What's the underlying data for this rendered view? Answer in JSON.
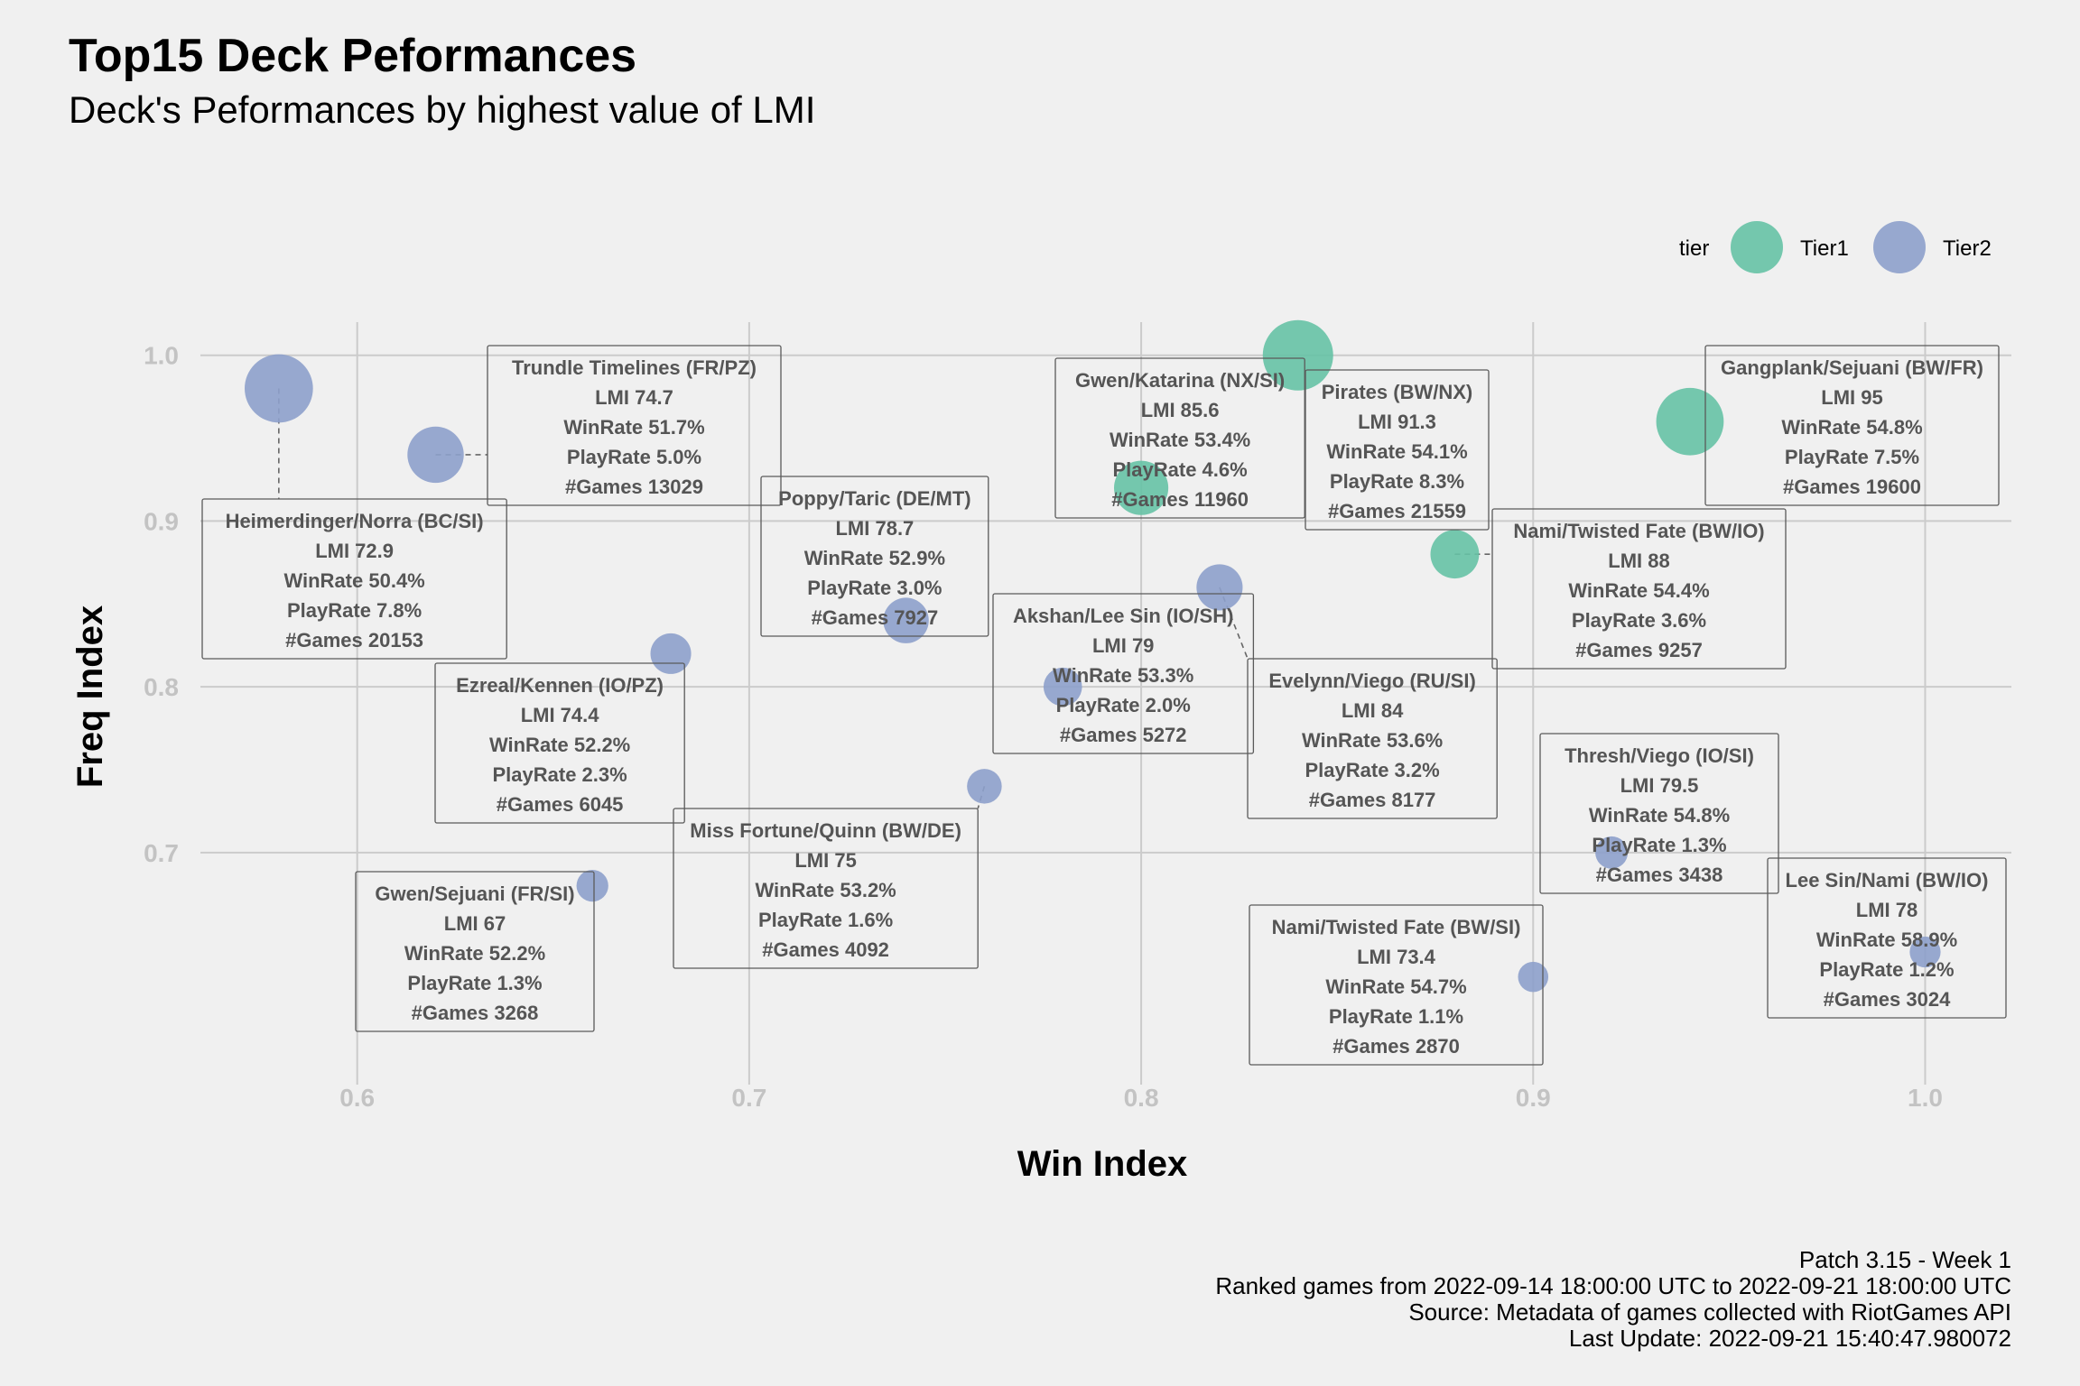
{
  "title": "Top15 Deck Peformances",
  "subtitle": "Deck's Peformances by highest value of LMI",
  "caption": [
    "Patch 3.15 - Week 1",
    "Ranked games from 2022-09-14 18:00:00 UTC to 2022-09-21 18:00:00 UTC",
    "Source: Metadata of games collected with RiotGames API",
    "Last Update: 2022-09-21 15:40:47.980072"
  ],
  "chart_data": {
    "type": "scatter",
    "xlabel": "Win Index",
    "ylabel": "Freq Index",
    "xlim": [
      0.56,
      1.022
    ],
    "ylim": [
      0.56,
      1.02
    ],
    "x_ticks": [
      "0.6",
      "0.7",
      "0.8",
      "0.9",
      "1.0"
    ],
    "y_ticks": [
      "0.7",
      "0.8",
      "0.9",
      "1.0"
    ],
    "grid": true,
    "legend": {
      "title": "tier",
      "position": "top-right",
      "entries": [
        {
          "name": "Tier1",
          "color": "#66c2a5"
        },
        {
          "name": "Tier2",
          "color": "#8da0cb"
        }
      ]
    },
    "size_variable": "#Games",
    "points": [
      {
        "deck": "Gangplank/Sejuani (BW/FR)",
        "tier": "Tier1",
        "x": 0.94,
        "y": 0.96,
        "lmi": "95",
        "winrate": "54.8%",
        "playrate": "7.5%",
        "games": 19600,
        "label_lines": [
          "Gangplank/Sejuani (BW/FR)",
          "LMI 95",
          "WinRate 54.8%",
          "PlayRate 7.5%",
          "#Games 19600"
        ]
      },
      {
        "deck": "Pirates (BW/NX)",
        "tier": "Tier1",
        "x": 0.84,
        "y": 1.0,
        "lmi": "91.3",
        "winrate": "54.1%",
        "playrate": "8.3%",
        "games": 21559,
        "label_lines": [
          "Pirates (BW/NX)",
          "LMI 91.3",
          "WinRate 54.1%",
          "PlayRate 8.3%",
          "#Games 21559"
        ]
      },
      {
        "deck": "Nami/Twisted Fate (BW/IO)",
        "tier": "Tier1",
        "x": 0.88,
        "y": 0.88,
        "lmi": "88",
        "winrate": "54.4%",
        "playrate": "3.6%",
        "games": 9257,
        "label_lines": [
          "Nami/Twisted Fate (BW/IO)",
          "LMI 88",
          "WinRate 54.4%",
          "PlayRate 3.6%",
          "#Games 9257"
        ]
      },
      {
        "deck": "Gwen/Katarina (NX/SI)",
        "tier": "Tier1",
        "x": 0.8,
        "y": 0.92,
        "lmi": "85.6",
        "winrate": "53.4%",
        "playrate": "4.6%",
        "games": 11960,
        "label_lines": [
          "Gwen/Katarina (NX/SI)",
          "LMI 85.6",
          "WinRate 53.4%",
          "PlayRate 4.6%",
          "#Games 11960"
        ]
      },
      {
        "deck": "Evelynn/Viego (RU/SI)",
        "tier": "Tier2",
        "x": 0.82,
        "y": 0.86,
        "lmi": "84",
        "winrate": "53.6%",
        "playrate": "3.2%",
        "games": 8177,
        "label_lines": [
          "Evelynn/Viego (RU/SI)",
          "LMI 84",
          "WinRate 53.6%",
          "PlayRate 3.2%",
          "#Games 8177"
        ]
      },
      {
        "deck": "Thresh/Viego (IO/SI)",
        "tier": "Tier2",
        "x": 0.92,
        "y": 0.7,
        "lmi": "79.5",
        "winrate": "54.8%",
        "playrate": "1.3%",
        "games": 3438,
        "label_lines": [
          "Thresh/Viego (IO/SI)",
          "LMI 79.5",
          "WinRate 54.8%",
          "PlayRate 1.3%",
          "#Games 3438"
        ]
      },
      {
        "deck": "Akshan/Lee Sin (IO/SH)",
        "tier": "Tier2",
        "x": 0.78,
        "y": 0.8,
        "lmi": "79",
        "winrate": "53.3%",
        "playrate": "2.0%",
        "games": 5272,
        "label_lines": [
          "Akshan/Lee Sin (IO/SH)",
          "LMI 79",
          "WinRate 53.3%",
          "PlayRate 2.0%",
          "#Games 5272"
        ]
      },
      {
        "deck": "Poppy/Taric (DE/MT)",
        "tier": "Tier2",
        "x": 0.74,
        "y": 0.84,
        "lmi": "78.7",
        "winrate": "52.9%",
        "playrate": "3.0%",
        "games": 7927,
        "label_lines": [
          "Poppy/Taric (DE/MT)",
          "LMI 78.7",
          "WinRate 52.9%",
          "PlayRate 3.0%",
          "#Games 7927"
        ]
      },
      {
        "deck": "Lee Sin/Nami (BW/IO)",
        "tier": "Tier2",
        "x": 1.0,
        "y": 0.64,
        "lmi": "78",
        "winrate": "58.9%",
        "playrate": "1.2%",
        "games": 3024,
        "label_lines": [
          "Lee Sin/Nami (BW/IO)",
          "LMI 78",
          "WinRate 58.9%",
          "PlayRate 1.2%",
          "#Games 3024"
        ]
      },
      {
        "deck": "Miss Fortune/Quinn (BW/DE)",
        "tier": "Tier2",
        "x": 0.76,
        "y": 0.74,
        "lmi": "75",
        "winrate": "53.2%",
        "playrate": "1.6%",
        "games": 4092,
        "label_lines": [
          "Miss Fortune/Quinn (BW/DE)",
          "LMI 75",
          "WinRate 53.2%",
          "PlayRate 1.6%",
          "#Games 4092"
        ]
      },
      {
        "deck": "Trundle Timelines (FR/PZ)",
        "tier": "Tier2",
        "x": 0.62,
        "y": 0.94,
        "lmi": "74.7",
        "winrate": "51.7%",
        "playrate": "5.0%",
        "games": 13029,
        "label_lines": [
          "Trundle Timelines (FR/PZ)",
          "LMI 74.7",
          "WinRate 51.7%",
          "PlayRate 5.0%",
          "#Games 13029"
        ]
      },
      {
        "deck": "Ezreal/Kennen (IO/PZ)",
        "tier": "Tier2",
        "x": 0.68,
        "y": 0.82,
        "lmi": "74.4",
        "winrate": "52.2%",
        "playrate": "2.3%",
        "games": 6045,
        "label_lines": [
          "Ezreal/Kennen (IO/PZ)",
          "LMI 74.4",
          "WinRate 52.2%",
          "PlayRate 2.3%",
          "#Games 6045"
        ]
      },
      {
        "deck": "Nami/Twisted Fate (BW/SI)",
        "tier": "Tier2",
        "x": 0.9,
        "y": 0.625,
        "lmi": "73.4",
        "winrate": "54.7%",
        "playrate": "1.1%",
        "games": 2870,
        "label_lines": [
          "Nami/Twisted Fate (BW/SI)",
          "LMI 73.4",
          "WinRate 54.7%",
          "PlayRate 1.1%",
          "#Games 2870"
        ]
      },
      {
        "deck": "Heimerdinger/Norra (BC/SI)",
        "tier": "Tier2",
        "x": 0.58,
        "y": 0.98,
        "lmi": "72.9",
        "winrate": "50.4%",
        "playrate": "7.8%",
        "games": 20153,
        "label_lines": [
          "Heimerdinger/Norra (BC/SI)",
          "LMI 72.9",
          "WinRate 50.4%",
          "PlayRate 7.8%",
          "#Games 20153"
        ]
      },
      {
        "deck": "Gwen/Sejuani (FR/SI)",
        "tier": "Tier2",
        "x": 0.66,
        "y": 0.68,
        "lmi": "67",
        "winrate": "52.2%",
        "playrate": "1.3%",
        "games": 3268,
        "label_lines": [
          "Gwen/Sejuani (FR/SI)",
          "LMI 67",
          "WinRate 52.2%",
          "PlayRate 1.3%",
          "#Games 3268"
        ]
      }
    ]
  }
}
